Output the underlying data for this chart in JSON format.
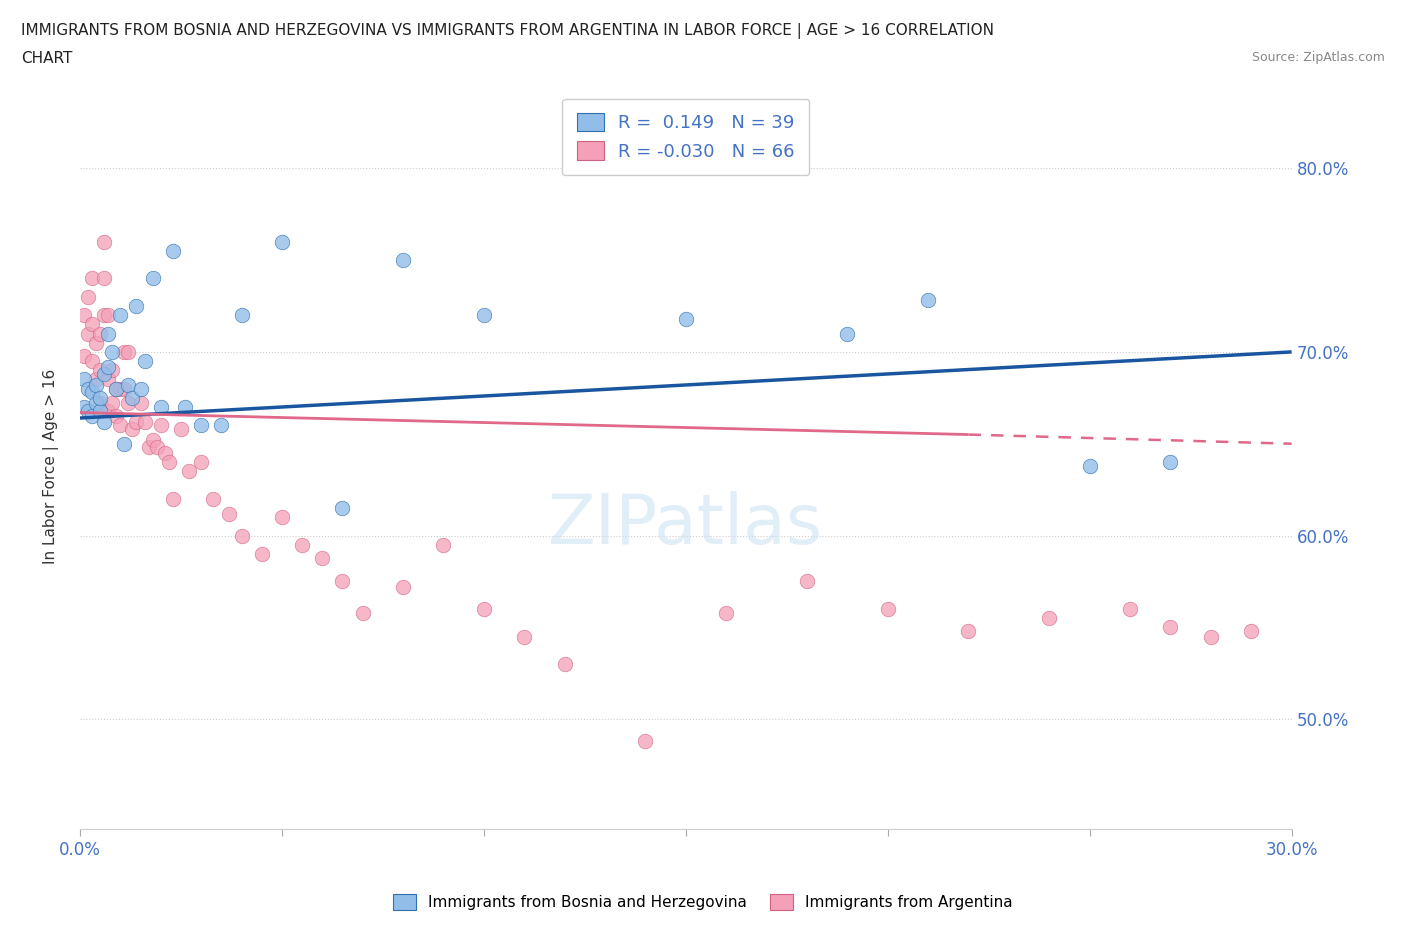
{
  "title_line1": "IMMIGRANTS FROM BOSNIA AND HERZEGOVINA VS IMMIGRANTS FROM ARGENTINA IN LABOR FORCE | AGE > 16 CORRELATION",
  "title_line2": "CHART",
  "source": "Source: ZipAtlas.com",
  "ylabel": "In Labor Force | Age > 16",
  "xlim": [
    0.0,
    0.3
  ],
  "ylim": [
    0.44,
    0.835
  ],
  "ytick_positions": [
    0.5,
    0.6,
    0.7,
    0.8
  ],
  "ytick_labels": [
    "50.0%",
    "60.0%",
    "70.0%",
    "80.0%"
  ],
  "r_bosnia": 0.149,
  "n_bosnia": 39,
  "r_argentina": -0.03,
  "n_argentina": 66,
  "color_bosnia": "#92BDE8",
  "color_argentina": "#F4A0B8",
  "color_trend_bosnia": "#1A56A0",
  "color_trend_argentina": "#E06888",
  "watermark": "ZIPatlas",
  "trend_bosnia_x0": 0.0,
  "trend_bosnia_y0": 0.664,
  "trend_bosnia_x1": 0.3,
  "trend_bosnia_y1": 0.7,
  "trend_arg_x0": 0.0,
  "trend_arg_y0": 0.667,
  "trend_arg_solid_x1": 0.22,
  "trend_arg_solid_y1": 0.655,
  "trend_arg_dashed_x1": 0.3,
  "trend_arg_dashed_y1": 0.65,
  "bosnia_x": [
    0.001,
    0.001,
    0.002,
    0.002,
    0.003,
    0.003,
    0.004,
    0.004,
    0.005,
    0.005,
    0.006,
    0.006,
    0.007,
    0.007,
    0.008,
    0.009,
    0.01,
    0.011,
    0.012,
    0.013,
    0.014,
    0.015,
    0.016,
    0.018,
    0.02,
    0.023,
    0.026,
    0.03,
    0.035,
    0.04,
    0.05,
    0.065,
    0.08,
    0.1,
    0.15,
    0.19,
    0.21,
    0.25,
    0.27
  ],
  "bosnia_y": [
    0.67,
    0.685,
    0.668,
    0.68,
    0.665,
    0.678,
    0.672,
    0.682,
    0.668,
    0.675,
    0.662,
    0.688,
    0.692,
    0.71,
    0.7,
    0.68,
    0.72,
    0.65,
    0.682,
    0.675,
    0.725,
    0.68,
    0.695,
    0.74,
    0.67,
    0.755,
    0.67,
    0.66,
    0.66,
    0.72,
    0.76,
    0.615,
    0.75,
    0.72,
    0.718,
    0.71,
    0.728,
    0.638,
    0.64
  ],
  "argentina_x": [
    0.001,
    0.001,
    0.002,
    0.002,
    0.003,
    0.003,
    0.003,
    0.004,
    0.004,
    0.005,
    0.005,
    0.005,
    0.006,
    0.006,
    0.006,
    0.007,
    0.007,
    0.007,
    0.008,
    0.008,
    0.009,
    0.009,
    0.01,
    0.01,
    0.011,
    0.011,
    0.012,
    0.012,
    0.013,
    0.014,
    0.015,
    0.016,
    0.017,
    0.018,
    0.019,
    0.02,
    0.021,
    0.022,
    0.023,
    0.025,
    0.027,
    0.03,
    0.033,
    0.037,
    0.04,
    0.045,
    0.05,
    0.055,
    0.06,
    0.065,
    0.07,
    0.08,
    0.09,
    0.1,
    0.11,
    0.12,
    0.14,
    0.16,
    0.18,
    0.2,
    0.22,
    0.24,
    0.26,
    0.27,
    0.28,
    0.29
  ],
  "argentina_y": [
    0.698,
    0.72,
    0.73,
    0.71,
    0.695,
    0.715,
    0.74,
    0.685,
    0.705,
    0.672,
    0.69,
    0.71,
    0.72,
    0.74,
    0.76,
    0.668,
    0.685,
    0.72,
    0.672,
    0.69,
    0.665,
    0.68,
    0.66,
    0.68,
    0.68,
    0.7,
    0.7,
    0.672,
    0.658,
    0.662,
    0.672,
    0.662,
    0.648,
    0.652,
    0.648,
    0.66,
    0.645,
    0.64,
    0.62,
    0.658,
    0.635,
    0.64,
    0.62,
    0.612,
    0.6,
    0.59,
    0.61,
    0.595,
    0.588,
    0.575,
    0.558,
    0.572,
    0.595,
    0.56,
    0.545,
    0.53,
    0.488,
    0.558,
    0.575,
    0.56,
    0.548,
    0.555,
    0.56,
    0.55,
    0.545,
    0.548
  ]
}
